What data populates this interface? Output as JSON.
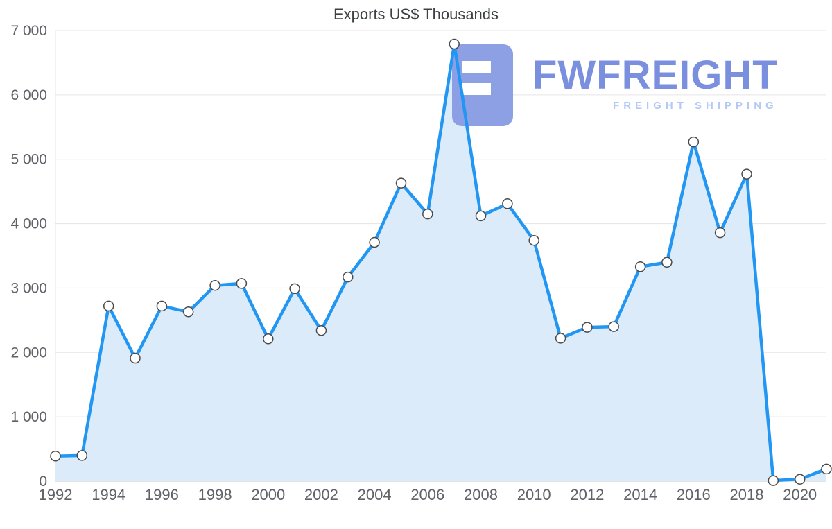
{
  "chart_data": {
    "type": "area",
    "title": "Exports US$ Thousands",
    "xlabel": "",
    "ylabel": "",
    "ylim": [
      0,
      7000
    ],
    "grid": true,
    "legend": "none",
    "x": [
      1992,
      1993,
      1994,
      1995,
      1996,
      1997,
      1998,
      1999,
      2000,
      2001,
      2002,
      2003,
      2004,
      2005,
      2006,
      2007,
      2008,
      2009,
      2010,
      2011,
      2012,
      2013,
      2014,
      2015,
      2016,
      2017,
      2018,
      2019,
      2020,
      2021
    ],
    "values": [
      390,
      400,
      2720,
      1910,
      2720,
      2630,
      3040,
      3070,
      2210,
      2990,
      2340,
      3170,
      3710,
      4630,
      4150,
      6790,
      4120,
      4310,
      3740,
      2220,
      2390,
      2400,
      3330,
      3400,
      5270,
      3860,
      4770,
      10,
      30,
      190
    ],
    "x_ticks": [
      1992,
      1994,
      1996,
      1998,
      2000,
      2002,
      2004,
      2006,
      2008,
      2010,
      2012,
      2014,
      2016,
      2018,
      2020
    ],
    "y_ticks": [
      {
        "value": 0,
        "label": "0"
      },
      {
        "value": 1000,
        "label": "1 000"
      },
      {
        "value": 2000,
        "label": "2 000"
      },
      {
        "value": 3000,
        "label": "3 000"
      },
      {
        "value": 4000,
        "label": "4 000"
      },
      {
        "value": 5000,
        "label": "5 000"
      },
      {
        "value": 6000,
        "label": "6 000"
      },
      {
        "value": 7000,
        "label": "7 000"
      }
    ],
    "colors": {
      "line": "#2196f3",
      "area": "#dcebf9",
      "marker_fill": "#ffffff",
      "marker_stroke": "#4a4a4a",
      "grid": "#e5e5e5",
      "axis_line": "#c7c7c7",
      "axis_text": "#5f6368",
      "title_text": "#3c4043"
    }
  },
  "watermark": {
    "brand": "FWFREIGHT",
    "tagline": "FREIGHT SHIPPING",
    "colors": {
      "mark": "#8498e2",
      "text": "#7b8fdf",
      "tagline": "#b4c9f3"
    }
  }
}
